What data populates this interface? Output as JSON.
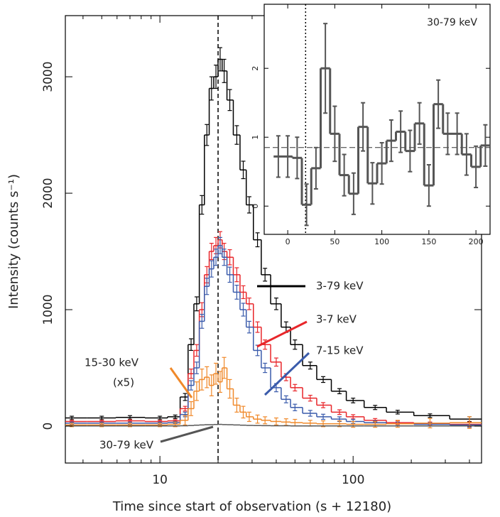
{
  "chart_data": [
    {
      "type": "step",
      "xlabel": "Time since start of observation (s + 12180)",
      "ylabel": "Intensity (counts s⁻¹)",
      "xlog": true,
      "xlim": [
        3.24,
        462
      ],
      "ylim": [
        -317,
        3525
      ],
      "xticks": [
        10,
        100
      ],
      "xminor": [
        4,
        5,
        6,
        7,
        8,
        9,
        20,
        30,
        40,
        50,
        60,
        70,
        80,
        90,
        200,
        300,
        400
      ],
      "yticks": [
        0,
        1000,
        2000,
        3000
      ],
      "vline": 20,
      "scale_note": "(x5)",
      "x": [
        3.5,
        5,
        7,
        10,
        12,
        13.5,
        14.5,
        15.5,
        16.5,
        17.5,
        18.5,
        19.5,
        20.5,
        21.5,
        23,
        25,
        27,
        29,
        32,
        35,
        40,
        45,
        50,
        60,
        70,
        85,
        100,
        130,
        170,
        250,
        400
      ],
      "series": [
        {
          "name": "3-79 keV",
          "color": "#000000",
          "values": [
            70,
            70,
            75,
            70,
            80,
            250,
            700,
            1050,
            1900,
            2500,
            2900,
            3000,
            3150,
            3050,
            2800,
            2500,
            2200,
            1900,
            1600,
            1300,
            1050,
            850,
            700,
            520,
            400,
            300,
            220,
            160,
            120,
            90,
            60
          ],
          "errors": [
            15,
            15,
            15,
            15,
            15,
            30,
            50,
            60,
            80,
            90,
            100,
            100,
            100,
            100,
            90,
            80,
            75,
            70,
            60,
            55,
            50,
            45,
            40,
            30,
            25,
            22,
            20,
            18,
            16,
            15,
            20
          ]
        },
        {
          "name": "3-7 keV",
          "color": "#e8262a",
          "values": [
            40,
            40,
            45,
            40,
            45,
            150,
            450,
            650,
            1000,
            1300,
            1500,
            1550,
            1600,
            1500,
            1450,
            1300,
            1150,
            1050,
            850,
            700,
            550,
            420,
            330,
            240,
            180,
            120,
            80,
            50,
            30,
            20,
            15
          ],
          "errors": [
            10,
            10,
            10,
            10,
            10,
            20,
            40,
            50,
            60,
            70,
            70,
            70,
            70,
            70,
            65,
            60,
            55,
            50,
            45,
            40,
            35,
            30,
            28,
            25,
            22,
            20,
            18,
            15,
            15,
            15,
            20
          ]
        },
        {
          "name": "7-15 keV",
          "color": "#3a5bab",
          "values": [
            25,
            25,
            25,
            25,
            30,
            100,
            350,
            500,
            900,
            1200,
            1350,
            1450,
            1550,
            1450,
            1300,
            1150,
            1000,
            850,
            650,
            500,
            330,
            230,
            160,
            110,
            80,
            60,
            40,
            30,
            20,
            15,
            10
          ],
          "errors": [
            10,
            10,
            10,
            10,
            10,
            20,
            40,
            50,
            60,
            70,
            70,
            70,
            70,
            70,
            65,
            60,
            55,
            50,
            45,
            40,
            35,
            30,
            28,
            25,
            22,
            20,
            18,
            15,
            15,
            15,
            20
          ]
        },
        {
          "name": "15-30 keV",
          "color": "#f0892a",
          "values": [
            10,
            10,
            10,
            10,
            15,
            50,
            150,
            300,
            400,
            420,
            350,
            450,
            380,
            500,
            320,
            180,
            120,
            80,
            60,
            50,
            40,
            35,
            30,
            25,
            20,
            20,
            15,
            15,
            20,
            25,
            30
          ],
          "errors": [
            15,
            15,
            15,
            15,
            20,
            40,
            60,
            80,
            90,
            90,
            90,
            90,
            90,
            90,
            80,
            60,
            50,
            40,
            35,
            30,
            30,
            28,
            28,
            25,
            25,
            25,
            25,
            25,
            30,
            40,
            50
          ]
        },
        {
          "name": "30-79 keV",
          "color": "#555555",
          "values": [
            2,
            2,
            2,
            2,
            2,
            3,
            5,
            8,
            10,
            12,
            12,
            14,
            15,
            13,
            12,
            10,
            8,
            6,
            5,
            4,
            3,
            3,
            2,
            2,
            2,
            2,
            2,
            2,
            2,
            2,
            2
          ]
        }
      ]
    },
    {
      "type": "step",
      "title": "30-79 keV",
      "xlog": false,
      "xlim": [
        -25,
        215
      ],
      "ylim": [
        -0.41,
        2.93
      ],
      "xticks": [
        0,
        50,
        100,
        150,
        200
      ],
      "yticks": [
        0,
        1,
        2
      ],
      "vline": 19,
      "hline": 0.85,
      "x": [
        -10,
        0,
        10,
        20,
        30,
        40,
        50,
        60,
        70,
        80,
        90,
        100,
        110,
        120,
        130,
        140,
        150,
        160,
        170,
        180,
        190,
        200,
        210
      ],
      "series": [
        {
          "color": "#555555",
          "values": [
            0.72,
            0.72,
            0.7,
            0.02,
            0.55,
            2.0,
            1.05,
            0.45,
            0.18,
            1.15,
            0.33,
            0.62,
            0.95,
            1.08,
            0.8,
            1.2,
            0.3,
            1.48,
            1.05,
            1.05,
            0.75,
            0.57,
            0.88
          ],
          "errors": [
            0.3,
            0.3,
            0.3,
            0.3,
            0.3,
            0.65,
            0.4,
            0.3,
            0.3,
            0.35,
            0.3,
            0.3,
            0.3,
            0.3,
            0.3,
            0.3,
            0.3,
            0.35,
            0.3,
            0.3,
            0.3,
            0.3,
            0.3
          ]
        }
      ]
    }
  ]
}
